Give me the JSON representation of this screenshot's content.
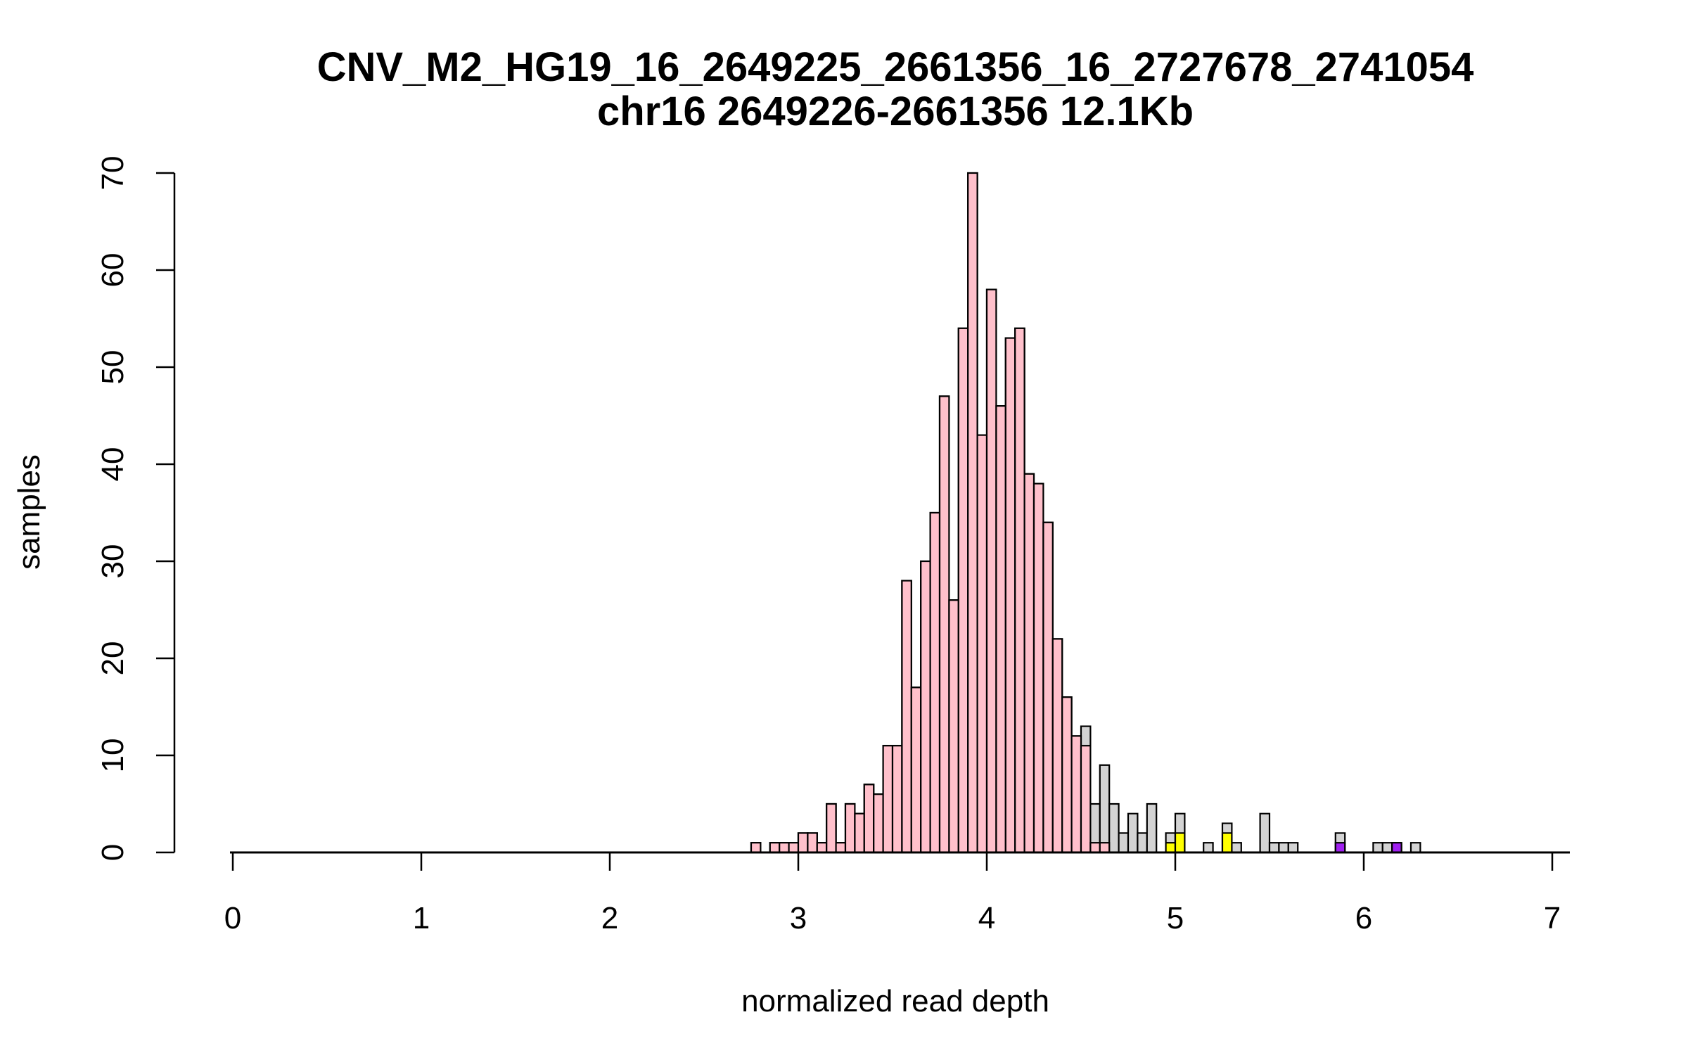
{
  "chart_data": {
    "type": "bar",
    "title": "CNV_M2_HG19_16_2649225_2661356_16_2727678_2741054",
    "subtitle": "chr16 2649226-2661356 12.1Kb",
    "xlabel": "normalized read depth",
    "ylabel": "samples",
    "xlim": [
      0,
      7
    ],
    "ylim": [
      0,
      70
    ],
    "x_ticks": [
      "0",
      "1",
      "2",
      "3",
      "4",
      "5",
      "6",
      "7"
    ],
    "y_ticks": [
      "0",
      "10",
      "20",
      "30",
      "40",
      "50",
      "60",
      "70"
    ],
    "bin_width": 0.05,
    "colors": {
      "all_samples": "#d3d3d3",
      "pink": "#ffc0cb",
      "yellow": "#ffff00",
      "purple": "#a020f0",
      "outline": "#000000"
    },
    "series": [
      {
        "color_key": "all_samples",
        "bins": [
          [
            2.75,
            1
          ],
          [
            2.85,
            1
          ],
          [
            2.9,
            1
          ],
          [
            2.95,
            1
          ],
          [
            3.0,
            2
          ],
          [
            3.05,
            2
          ],
          [
            3.1,
            1
          ],
          [
            3.15,
            5
          ],
          [
            3.2,
            1
          ],
          [
            3.25,
            5
          ],
          [
            3.3,
            4
          ],
          [
            3.35,
            7
          ],
          [
            3.4,
            6
          ],
          [
            3.45,
            11
          ],
          [
            3.5,
            11
          ],
          [
            3.55,
            28
          ],
          [
            3.6,
            17
          ],
          [
            3.65,
            30
          ],
          [
            3.7,
            35
          ],
          [
            3.75,
            47
          ],
          [
            3.8,
            26
          ],
          [
            3.85,
            54
          ],
          [
            3.9,
            70
          ],
          [
            3.95,
            43
          ],
          [
            4.0,
            58
          ],
          [
            4.05,
            46
          ],
          [
            4.1,
            53
          ],
          [
            4.15,
            54
          ],
          [
            4.2,
            39
          ],
          [
            4.25,
            38
          ],
          [
            4.3,
            34
          ],
          [
            4.35,
            22
          ],
          [
            4.4,
            16
          ],
          [
            4.45,
            12
          ],
          [
            4.5,
            13
          ],
          [
            4.55,
            5
          ],
          [
            4.6,
            9
          ],
          [
            4.65,
            5
          ],
          [
            4.7,
            2
          ],
          [
            4.75,
            4
          ],
          [
            4.8,
            2
          ],
          [
            4.85,
            5
          ],
          [
            4.95,
            2
          ],
          [
            5.0,
            4
          ],
          [
            5.15,
            1
          ],
          [
            5.25,
            3
          ],
          [
            5.3,
            1
          ],
          [
            5.45,
            4
          ],
          [
            5.5,
            1
          ],
          [
            5.55,
            1
          ],
          [
            5.6,
            1
          ],
          [
            5.85,
            2
          ],
          [
            6.05,
            1
          ],
          [
            6.1,
            1
          ],
          [
            6.15,
            1
          ],
          [
            6.25,
            1
          ]
        ]
      },
      {
        "color_key": "pink",
        "bins": [
          [
            2.75,
            1
          ],
          [
            2.85,
            1
          ],
          [
            2.9,
            1
          ],
          [
            2.95,
            1
          ],
          [
            3.0,
            2
          ],
          [
            3.05,
            2
          ],
          [
            3.1,
            1
          ],
          [
            3.15,
            5
          ],
          [
            3.2,
            1
          ],
          [
            3.25,
            5
          ],
          [
            3.3,
            4
          ],
          [
            3.35,
            7
          ],
          [
            3.4,
            6
          ],
          [
            3.45,
            11
          ],
          [
            3.5,
            11
          ],
          [
            3.55,
            28
          ],
          [
            3.6,
            17
          ],
          [
            3.65,
            30
          ],
          [
            3.7,
            35
          ],
          [
            3.75,
            47
          ],
          [
            3.8,
            26
          ],
          [
            3.85,
            54
          ],
          [
            3.9,
            70
          ],
          [
            3.95,
            43
          ],
          [
            4.0,
            58
          ],
          [
            4.05,
            46
          ],
          [
            4.1,
            53
          ],
          [
            4.15,
            54
          ],
          [
            4.2,
            39
          ],
          [
            4.25,
            38
          ],
          [
            4.3,
            34
          ],
          [
            4.35,
            22
          ],
          [
            4.4,
            16
          ],
          [
            4.45,
            12
          ],
          [
            4.5,
            11
          ],
          [
            4.55,
            1
          ],
          [
            4.6,
            1
          ]
        ]
      },
      {
        "color_key": "yellow",
        "bins": [
          [
            4.95,
            1
          ],
          [
            5.0,
            2
          ],
          [
            5.25,
            2
          ]
        ]
      },
      {
        "color_key": "purple",
        "bins": [
          [
            5.85,
            1
          ],
          [
            6.15,
            1
          ]
        ]
      }
    ]
  }
}
